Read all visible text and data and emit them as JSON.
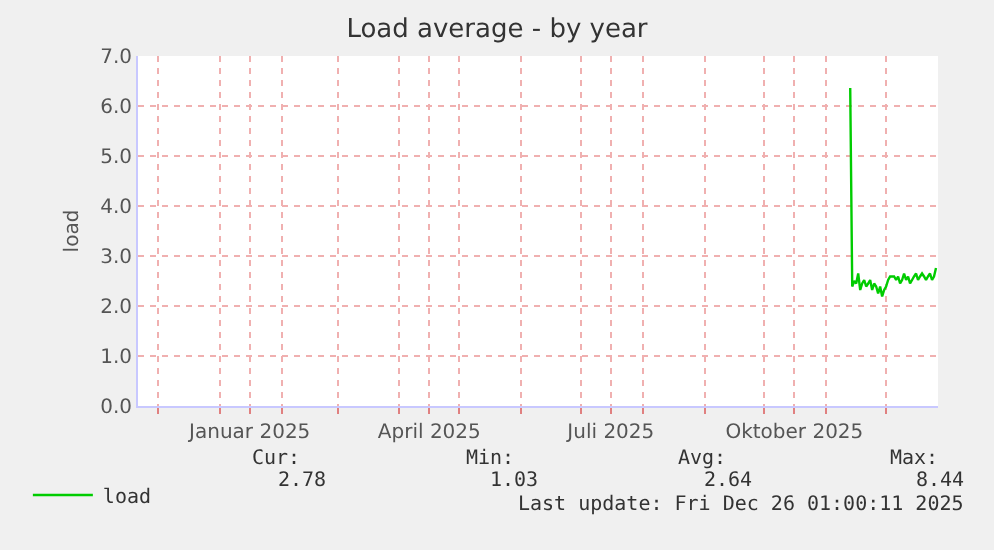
{
  "chart_data": {
    "type": "line",
    "title": "Load average - by year",
    "ylabel": "load",
    "x": [
      "2025-11-13",
      "2025-11-14",
      "2025-11-15",
      "2025-11-16",
      "2025-11-17",
      "2025-11-18",
      "2025-11-19",
      "2025-11-20",
      "2025-11-21",
      "2025-11-22",
      "2025-11-23",
      "2025-11-24",
      "2025-11-25",
      "2025-11-26",
      "2025-11-27",
      "2025-11-28",
      "2025-11-29",
      "2025-11-30",
      "2025-12-01",
      "2025-12-02",
      "2025-12-03",
      "2025-12-04",
      "2025-12-05",
      "2025-12-06",
      "2025-12-07",
      "2025-12-08",
      "2025-12-09",
      "2025-12-10",
      "2025-12-11",
      "2025-12-12",
      "2025-12-13",
      "2025-12-14",
      "2025-12-15",
      "2025-12-16",
      "2025-12-17",
      "2025-12-18",
      "2025-12-19",
      "2025-12-20",
      "2025-12-21",
      "2025-12-22",
      "2025-12-23",
      "2025-12-24",
      "2025-12-25",
      "2025-12-26"
    ],
    "series": [
      {
        "name": "load",
        "color": "#00cc00",
        "values": [
          6.36,
          2.39,
          2.5,
          2.45,
          2.65,
          2.32,
          2.45,
          2.52,
          2.39,
          2.45,
          2.52,
          2.32,
          2.45,
          2.39,
          2.25,
          2.39,
          2.19,
          2.32,
          2.39,
          2.52,
          2.59,
          2.59,
          2.59,
          2.52,
          2.59,
          2.45,
          2.52,
          2.65,
          2.52,
          2.59,
          2.45,
          2.52,
          2.59,
          2.65,
          2.52,
          2.59,
          2.65,
          2.59,
          2.52,
          2.59,
          2.65,
          2.52,
          2.59,
          2.76
        ]
      }
    ],
    "xlim": [
      "2024-11-21",
      "2025-12-27"
    ],
    "xticks": [
      {
        "value": "2024-12-01",
        "label": null
      },
      {
        "value": "2025-01-01",
        "label": null
      },
      {
        "value": "2025-01-16",
        "label": "Januar 2025"
      },
      {
        "value": "2025-02-01",
        "label": null
      },
      {
        "value": "2025-03-01",
        "label": null
      },
      {
        "value": "2025-04-01",
        "label": null
      },
      {
        "value": "2025-04-16",
        "label": "April 2025"
      },
      {
        "value": "2025-05-01",
        "label": null
      },
      {
        "value": "2025-06-01",
        "label": null
      },
      {
        "value": "2025-07-01",
        "label": null
      },
      {
        "value": "2025-07-16",
        "label": "Juli 2025"
      },
      {
        "value": "2025-08-01",
        "label": null
      },
      {
        "value": "2025-09-01",
        "label": null
      },
      {
        "value": "2025-10-01",
        "label": null
      },
      {
        "value": "2025-10-16",
        "label": "Oktober 2025"
      },
      {
        "value": "2025-11-01",
        "label": null
      },
      {
        "value": "2025-12-01",
        "label": null
      }
    ],
    "ylim": [
      0,
      7
    ],
    "yticks": [
      {
        "value": 0,
        "label": "0.0"
      },
      {
        "value": 1,
        "label": "1.0"
      },
      {
        "value": 2,
        "label": "2.0"
      },
      {
        "value": 3,
        "label": "3.0"
      },
      {
        "value": 4,
        "label": "4.0"
      },
      {
        "value": 5,
        "label": "5.0"
      },
      {
        "value": 6,
        "label": "6.0"
      },
      {
        "value": 7,
        "label": "7.0"
      }
    ],
    "grid": true,
    "legend": "bottom left",
    "line_style": "solid",
    "marker": "none",
    "annotations": [
      "Cur:",
      "Min:",
      "Avg:",
      "Max:",
      "2.78",
      "1.03",
      "2.64",
      "8.44",
      "Last update: Fri Dec 26 01:00:11 2025"
    ]
  }
}
